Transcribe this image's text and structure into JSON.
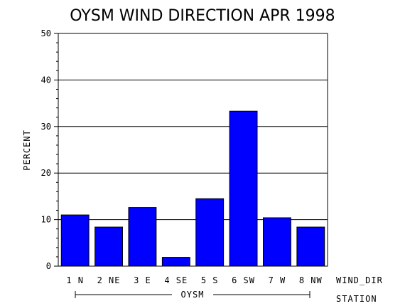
{
  "chart_data": {
    "type": "bar",
    "title": "OYSM WIND DIRECTION APR 1998",
    "ylabel": "PERCENT",
    "xlabel": "WIND_DIR",
    "group_axis_label": "STATION",
    "group_label": "OYSM",
    "categories": [
      "1 N",
      "2 NE",
      "3 E",
      "4 SE",
      "5 S",
      "6 SW",
      "7 W",
      "8 NW"
    ],
    "values": [
      11.0,
      8.4,
      12.6,
      1.9,
      14.5,
      33.3,
      10.4,
      8.4
    ],
    "ylim": [
      0,
      50
    ],
    "yticks": [
      0,
      10,
      20,
      30,
      40,
      50
    ],
    "grid": true,
    "bar_color": "#0000ff"
  }
}
